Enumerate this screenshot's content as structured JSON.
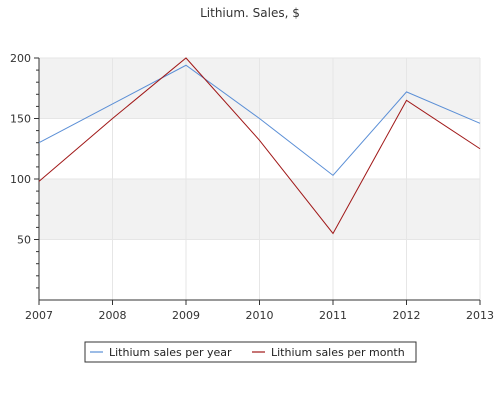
{
  "chart_data": {
    "type": "line",
    "title": "Lithium. Sales, $",
    "xlabel": "",
    "ylabel": "",
    "x": [
      "2007",
      "2008",
      "2009",
      "2010",
      "2011",
      "2012",
      "2013"
    ],
    "ylim": [
      0,
      200
    ],
    "yticks": [
      "50",
      "100",
      "150",
      "200"
    ],
    "grid": true,
    "legend_position": "bottom",
    "series": [
      {
        "name": "Lithium sales per year",
        "color": "#5b8fd6",
        "values": [
          130,
          162,
          194,
          150,
          103,
          172,
          146
        ]
      },
      {
        "name": "Lithium sales per month",
        "color": "#a01818",
        "values": [
          98,
          150,
          200,
          132,
          55,
          165,
          125
        ]
      }
    ]
  }
}
